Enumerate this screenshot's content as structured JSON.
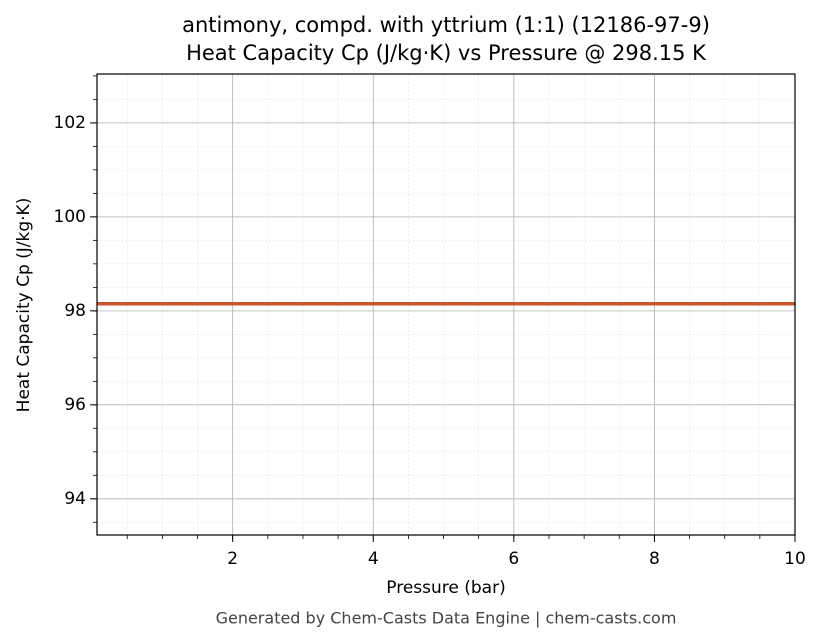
{
  "chart_data": {
    "type": "line",
    "title": [
      "antimony, compd. with yttrium (1:1) (12186-97-9)",
      "Heat Capacity Cp (J/kg·K) vs Pressure @ 298.15 K"
    ],
    "xlabel": "Pressure (bar)",
    "ylabel": "Heat Capacity Cp (J/kg·K)",
    "x": [
      0.07,
      10
    ],
    "series": [
      {
        "name": "Cp",
        "color": "#c8562b",
        "values": [
          98.15,
          98.15
        ]
      }
    ],
    "xlim": [
      0.07,
      10
    ],
    "ylim": [
      93.23,
      103.04
    ],
    "xticks": [
      2,
      4,
      6,
      8,
      10
    ],
    "yticks": [
      94,
      96,
      98,
      100,
      102
    ],
    "grid": true,
    "minor_grid": true,
    "footer": "Generated by Chem-Casts Data Engine | chem-casts.com"
  }
}
